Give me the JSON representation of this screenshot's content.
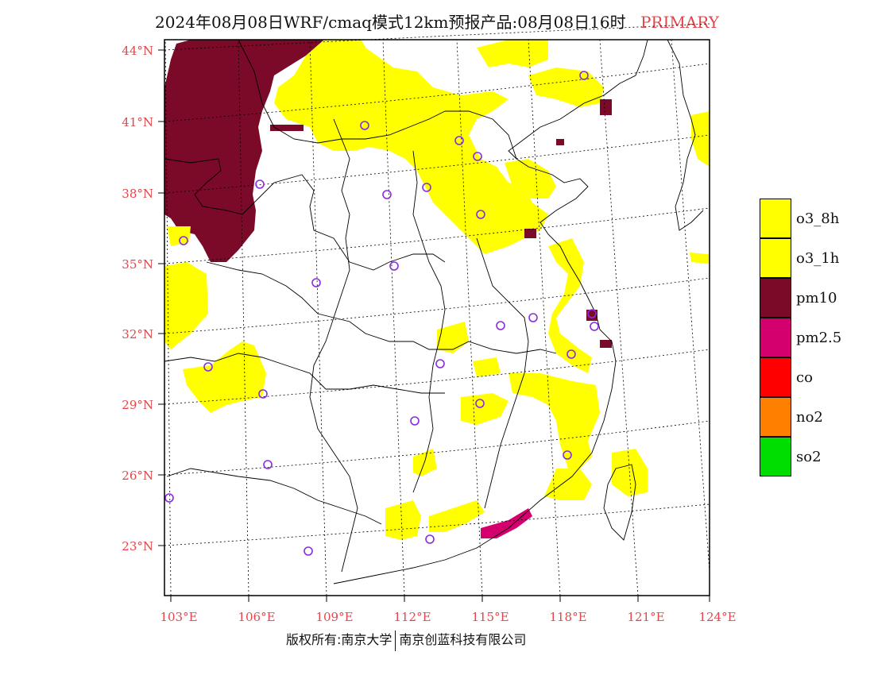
{
  "title": {
    "main": "2024年08月08日WRF/cmaq模式12km预报产品:08月08日16时",
    "tag": "PRIMARY"
  },
  "axes": {
    "lat_labels": [
      "44°N",
      "41°N",
      "38°N",
      "35°N",
      "32°N",
      "29°N",
      "26°N",
      "23°N"
    ],
    "lon_labels": [
      "103°E",
      "106°E",
      "109°E",
      "112°E",
      "115°E",
      "118°E",
      "121°E",
      "124°E"
    ]
  },
  "legend": [
    {
      "label": "o3_8h",
      "color": "#ffff00"
    },
    {
      "label": "o3_1h",
      "color": "#ffff00"
    },
    {
      "label": "pm10",
      "color": "#7a0a28"
    },
    {
      "label": "pm2.5",
      "color": "#d4006e"
    },
    {
      "label": "co",
      "color": "#ff0000"
    },
    {
      "label": "no2",
      "color": "#ff7f00"
    },
    {
      "label": "so2",
      "color": "#00dd00"
    }
  ],
  "footer": {
    "left": "版权所有:南京大学",
    "right": "南京创蓝科技有限公司"
  }
}
